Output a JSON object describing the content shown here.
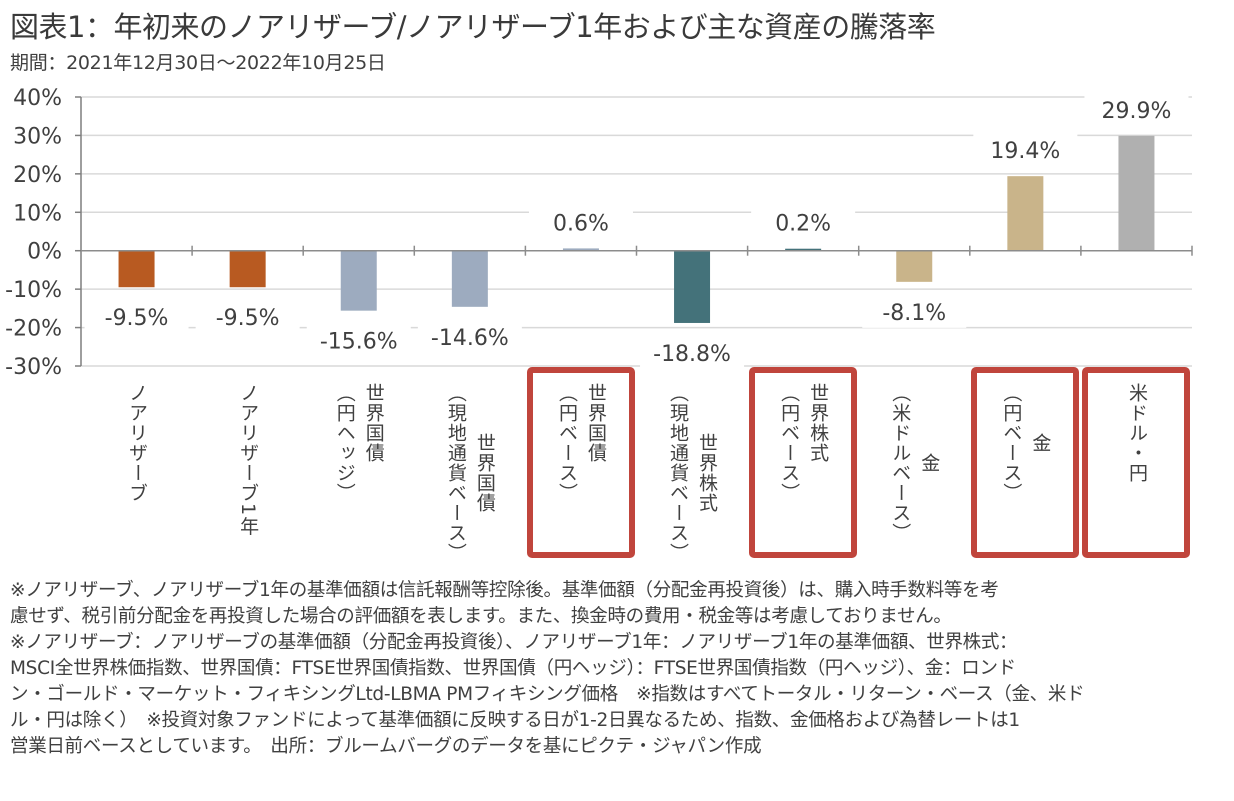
{
  "header": {
    "title": "図表1：年初来のノアリザーブ/ノアリザーブ1年および主な資産の騰落率",
    "period": "期間：2021年12月30日～2022年10月25日"
  },
  "chart_data": {
    "type": "bar",
    "title": "図表1：年初来のノアリザーブ/ノアリザーブ1年および主な資産の騰落率",
    "subtitle": "期間：2021年12月30日～2022年10月25日",
    "xlabel": "",
    "ylabel": "",
    "ylim": [
      -30,
      40
    ],
    "yticks": [
      40,
      30,
      20,
      10,
      0,
      -10,
      -20,
      -30
    ],
    "ytick_labels": [
      "40%",
      "30%",
      "20%",
      "10%",
      "0%",
      "-10%",
      "-20%",
      "-30%"
    ],
    "grid": true,
    "categories": [
      "ノアリザーブ",
      "ノアリザーブ1年",
      "世界国債（円ヘッジ）",
      "世界国債（現地通貨ベース）",
      "世界国債（円ベース）",
      "世界株式（現地通貨ベース）",
      "世界株式（円ベース）",
      "金（米ドルベース）",
      "金（円ベース）",
      "米ドル・円"
    ],
    "values": [
      -9.5,
      -9.5,
      -15.6,
      -14.6,
      0.6,
      -18.8,
      0.2,
      -8.1,
      19.4,
      29.9
    ],
    "data_labels": [
      "-9.5%",
      "-9.5%",
      "-15.6%",
      "-14.6%",
      "0.6%",
      "-18.8%",
      "0.2%",
      "-8.1%",
      "19.4%",
      "29.9%"
    ],
    "colors": [
      "#b85a21",
      "#b85a21",
      "#9dabbf",
      "#9dabbf",
      "#9dabbf",
      "#44727a",
      "#44727a",
      "#c9b48a",
      "#c9b48a",
      "#b0b0b0"
    ],
    "highlighted": [
      false,
      false,
      false,
      false,
      true,
      false,
      true,
      false,
      true,
      true
    ],
    "highlight_color": "#c0453c"
  },
  "category_labels": [
    {
      "main": "ノアリザーブ",
      "sub": ""
    },
    {
      "main": "ノアリザーブ1年",
      "sub": ""
    },
    {
      "main": "世界国債",
      "sub": "（円ヘッジ）"
    },
    {
      "main": "世界国債",
      "sub": "（現地通貨ベース）"
    },
    {
      "main": "世界国債",
      "sub": "（円ベース）"
    },
    {
      "main": "世界株式",
      "sub": "（現地通貨ベース）"
    },
    {
      "main": "世界株式",
      "sub": "（円ベース）"
    },
    {
      "main": "金",
      "sub": "（米ドルベース）"
    },
    {
      "main": "金",
      "sub": "（円ベース）"
    },
    {
      "main": "米ドル・円",
      "sub": ""
    }
  ],
  "notes": [
    "※ノアリザーブ、ノアリザーブ1年の基準価額は信託報酬等控除後。基準価額（分配金再投資後）は、購入時手数料等を考",
    "慮せず、税引前分配金を再投資した場合の評価額を表します。また、換金時の費用・税金等は考慮しておりません。",
    "※ノアリザーブ：ノアリザーブの基準価額（分配金再投資後）、ノアリザーブ1年：ノアリザーブ1年の基準価額、世界株式：",
    "MSCI全世界株価指数、世界国債：FTSE世界国債指数、世界国債（円ヘッジ）：FTSE世界国債指数（円ヘッジ）、金：ロンド",
    "ン・ゴールド・マーケット・フィキシングLtd-LBMA PMフィキシング価格　※指数はすべてトータル・リターン・ベース（金、米ド",
    "ル・円は除く）　※投資対象ファンドによって基準価額に反映する日が1-2日異なるため、指数、金価格および為替レートは1",
    "営業日前ベースとしています。　出所：ブルームバーグのデータを基にピクテ・ジャパン作成"
  ]
}
